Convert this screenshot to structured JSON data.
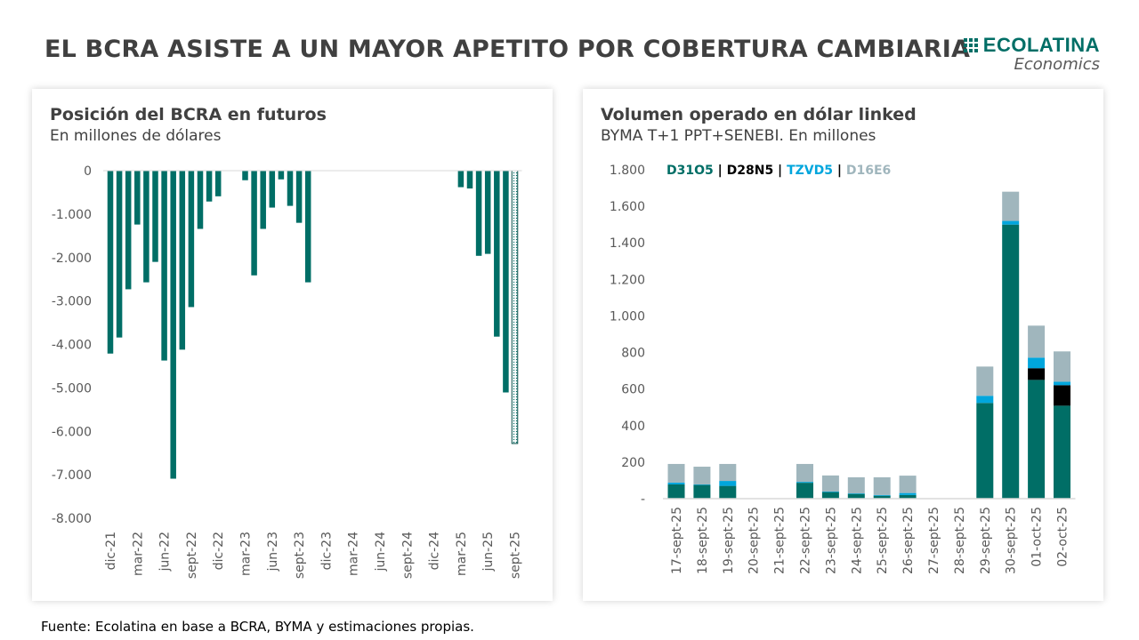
{
  "header": {
    "title": "EL BCRA ASISTE A UN MAYOR APETITO POR COBERTURA CAMBIARIA",
    "logo": {
      "name": "ECOLATINA",
      "sub": "Economics"
    }
  },
  "footer": {
    "source": "Fuente: Ecolatina en base a BCRA, BYMA y estimaciones propias."
  },
  "colors": {
    "teal": "#006e66",
    "black": "#000000",
    "blue": "#00a6dd",
    "gray": "#a0b6bd"
  },
  "chart_data": [
    {
      "type": "bar",
      "title": "Posición del BCRA en futuros",
      "subtitle": "En millones de dólares",
      "ylim": [
        -8000,
        0
      ],
      "yticks": [
        "0",
        "-1.000",
        "-2.000",
        "-3.000",
        "-4.000",
        "-5.000",
        "-6.000",
        "-7.000",
        "-8.000"
      ],
      "ytick_values": [
        0,
        -1000,
        -2000,
        -3000,
        -4000,
        -5000,
        -6000,
        -7000,
        -8000
      ],
      "xtick_labels": [
        "dic-21",
        "mar-22",
        "jun-22",
        "sept-22",
        "dic-22",
        "mar-23",
        "jun-23",
        "sept-23",
        "dic-23",
        "mar-24",
        "jun-24",
        "sept-24",
        "dic-24",
        "mar-25",
        "jun-25",
        "sept-25"
      ],
      "categories": [
        "dic-21",
        "ene-22",
        "feb-22",
        "mar-22",
        "abr-22",
        "may-22",
        "jun-22",
        "jul-22",
        "ago-22",
        "sept-22",
        "oct-22",
        "nov-22",
        "dic-22",
        "ene-23",
        "feb-23",
        "mar-23",
        "abr-23",
        "may-23",
        "jun-23",
        "jul-23",
        "ago-23",
        "sept-23",
        "oct-23",
        "nov-23",
        "dic-23",
        "ene-24",
        "feb-24",
        "mar-24",
        "abr-24",
        "may-24",
        "jun-24",
        "jul-24",
        "ago-24",
        "sept-24",
        "oct-24",
        "nov-24",
        "dic-24",
        "ene-25",
        "feb-25",
        "mar-25",
        "abr-25",
        "may-25",
        "jun-25",
        "jul-25",
        "ago-25",
        "sept-25"
      ],
      "values": [
        -4210,
        -3840,
        -2730,
        -1240,
        -2570,
        -2100,
        -4370,
        -7090,
        -4120,
        -3140,
        -1340,
        -710,
        -590,
        0,
        0,
        -220,
        -2410,
        -1340,
        -850,
        -200,
        -810,
        -1200,
        -2570,
        0,
        0,
        0,
        0,
        0,
        0,
        0,
        0,
        0,
        0,
        0,
        0,
        0,
        0,
        0,
        0,
        -380,
        -410,
        -1960,
        -1915,
        -3820,
        -5105,
        -6280
      ],
      "estimated_last": true
    },
    {
      "type": "bar",
      "stacked": true,
      "title": "Volumen operado en dólar linked",
      "subtitle": "BYMA T+1 PPT+SENEBI. En millones",
      "ylim": [
        0,
        1800
      ],
      "yticks": [
        "-",
        "200",
        "400",
        "600",
        "800",
        "1.000",
        "1.200",
        "1.400",
        "1.600",
        "1.800"
      ],
      "ytick_values": [
        0,
        200,
        400,
        600,
        800,
        1000,
        1200,
        1400,
        1600,
        1800
      ],
      "categories": [
        "17-sept-25",
        "18-sept-25",
        "19-sept-25",
        "20-sept-25",
        "21-sept-25",
        "22-sept-25",
        "23-sept-25",
        "24-sept-25",
        "25-sept-25",
        "26-sept-25",
        "27-sept-25",
        "28-sept-25",
        "29-sept-25",
        "30-sept-25",
        "01-oct-25",
        "02-oct-25"
      ],
      "legend_position": "top-left",
      "series": [
        {
          "name": "D31O5",
          "color": "#006e66",
          "values": [
            78,
            75,
            70,
            0,
            0,
            87,
            36,
            26,
            16,
            20,
            0,
            0,
            524,
            1500,
            650,
            509
          ]
        },
        {
          "name": "D28N5",
          "color": "#000000",
          "values": [
            0,
            0,
            0,
            0,
            0,
            0,
            0,
            0,
            0,
            0,
            0,
            0,
            0,
            0,
            64,
            112
          ]
        },
        {
          "name": "TZVD5",
          "color": "#00a6dd",
          "values": [
            10,
            3,
            27,
            0,
            0,
            5,
            3,
            3,
            4,
            11,
            0,
            0,
            39,
            20,
            58,
            19
          ]
        },
        {
          "name": "D16E6",
          "color": "#a0b6bd",
          "values": [
            102,
            97,
            93,
            0,
            0,
            98,
            88,
            88,
            97,
            95,
            0,
            0,
            160,
            160,
            175,
            166
          ]
        }
      ]
    }
  ]
}
